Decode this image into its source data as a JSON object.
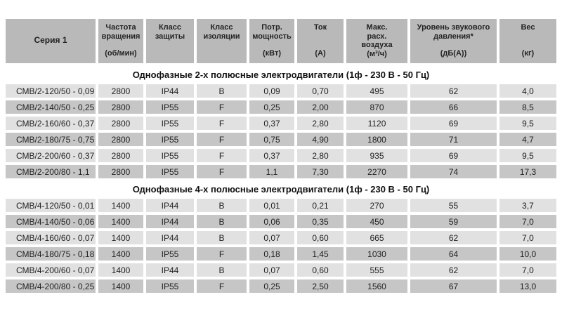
{
  "table": {
    "colors": {
      "header_bg": "#b9b9b9",
      "row_light": "#e1e1e1",
      "row_dark": "#c6c6c6",
      "text": "#222222"
    },
    "series_column": {
      "title": "Серия 1",
      "unit": ""
    },
    "columns": [
      {
        "title": "Частота\nвращения",
        "unit": "(об/мин)"
      },
      {
        "title": "Класс\nзащиты",
        "unit": ""
      },
      {
        "title": "Класс\nизоляции",
        "unit": ""
      },
      {
        "title": "Потр.\nмощность",
        "unit": "(кВт)"
      },
      {
        "title": "Ток",
        "unit": "(А)"
      },
      {
        "title": "Макс.\nрасх.\nвоздуха",
        "unit": "(м³/ч)"
      },
      {
        "title": "Уровень звукового\nдавления*",
        "unit": "(дБ(А))"
      },
      {
        "title": "Вес",
        "unit": "(кг)"
      }
    ],
    "sections": [
      {
        "header": "Однофазные 2-х полюсные электродвигатели (1ф - 230 В - 50 Гц)",
        "rows": [
          [
            "СМВ/2-120/50 - 0,09",
            "2800",
            "IP44",
            "B",
            "0,09",
            "0,70",
            "495",
            "62",
            "4,0"
          ],
          [
            "СМВ/2-140/50 - 0,25",
            "2800",
            "IP55",
            "F",
            "0,25",
            "2,00",
            "870",
            "66",
            "8,5"
          ],
          [
            "СМВ/2-160/60 - 0,37",
            "2800",
            "IP55",
            "F",
            "0,37",
            "2,80",
            "1120",
            "69",
            "9,5"
          ],
          [
            "СМВ/2-180/75 - 0,75",
            "2800",
            "IP55",
            "F",
            "0,75",
            "4,90",
            "1800",
            "71",
            "4,7"
          ],
          [
            "СМВ/2-200/60 - 0,37",
            "2800",
            "IP55",
            "F",
            "0,37",
            "2,80",
            "935",
            "69",
            "9,5"
          ],
          [
            "СМВ/2-200/80 - 1,1",
            "2800",
            "IP55",
            "F",
            "1,1",
            "7,30",
            "2270",
            "74",
            "17,3"
          ]
        ]
      },
      {
        "header": "Однофазные 4-х полюсные электродвигатели (1ф - 230 В - 50 Гц)",
        "rows": [
          [
            "СМВ/4-120/50 - 0,01",
            "1400",
            "IP44",
            "B",
            "0,01",
            "0,21",
            "270",
            "55",
            "3,7"
          ],
          [
            "СМВ/4-140/50 - 0,06",
            "1400",
            "IP44",
            "B",
            "0,06",
            "0,35",
            "450",
            "59",
            "7,0"
          ],
          [
            "СМВ/4-160/60 - 0,07",
            "1400",
            "IP44",
            "B",
            "0,07",
            "0,60",
            "665",
            "62",
            "7,0"
          ],
          [
            "СМВ/4-180/75 - 0,18",
            "1400",
            "IP55",
            "F",
            "0,18",
            "1,45",
            "1030",
            "64",
            "10,0"
          ],
          [
            "СМВ/4-200/60 - 0,07",
            "1400",
            "IP44",
            "B",
            "0,07",
            "0,60",
            "555",
            "62",
            "7,0"
          ],
          [
            "СМВ/4-200/80 - 0,25",
            "1400",
            "IP55",
            "F",
            "0,25",
            "2,50",
            "1560",
            "67",
            "13,0"
          ]
        ]
      }
    ]
  }
}
